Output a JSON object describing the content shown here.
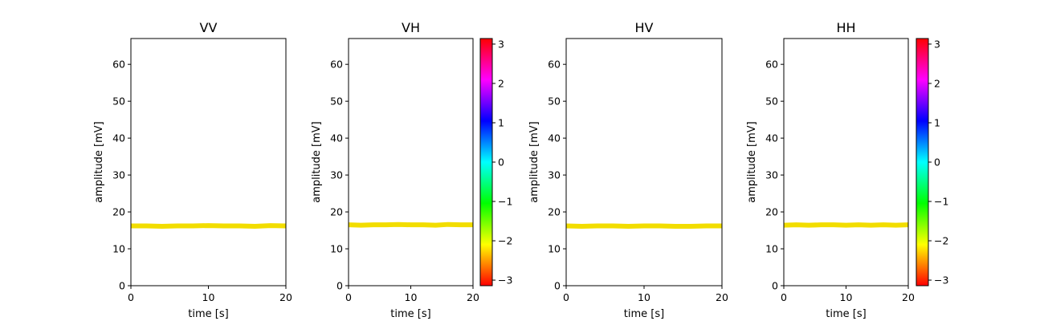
{
  "chart_data": [
    {
      "type": "line",
      "title": "VV",
      "xlabel": "time [s]",
      "ylabel": "amplitude [mV]",
      "xlim": [
        0,
        20
      ],
      "ylim": [
        0,
        67
      ],
      "xticks": [
        "0",
        "10",
        "20"
      ],
      "yticks": [
        "0",
        "10",
        "20",
        "30",
        "40",
        "50",
        "60"
      ],
      "series": [
        {
          "x": [
            0,
            2,
            4,
            6,
            8,
            10,
            12,
            14,
            16,
            18,
            20
          ],
          "y": [
            16.2,
            16.2,
            16.1,
            16.2,
            16.2,
            16.3,
            16.2,
            16.2,
            16.1,
            16.3,
            16.2
          ],
          "color": "#f2dd00"
        }
      ],
      "colorbar": null
    },
    {
      "type": "line",
      "title": "VH",
      "xlabel": "time [s]",
      "ylabel": "amplitude [mV]",
      "xlim": [
        0,
        20
      ],
      "ylim": [
        0,
        67
      ],
      "xticks": [
        "0",
        "10",
        "20"
      ],
      "yticks": [
        "0",
        "10",
        "20",
        "30",
        "40",
        "50",
        "60"
      ],
      "series": [
        {
          "x": [
            0,
            2,
            4,
            6,
            8,
            10,
            12,
            14,
            16,
            18,
            20
          ],
          "y": [
            16.5,
            16.4,
            16.5,
            16.5,
            16.6,
            16.5,
            16.5,
            16.4,
            16.6,
            16.5,
            16.5
          ],
          "color": "#f2dd00"
        }
      ],
      "colorbar": {
        "min": -3.14159,
        "max": 3.14159,
        "ticks": [
          "3",
          "2",
          "1",
          "0",
          "−1",
          "−2",
          "−3"
        ],
        "tick_values": [
          3,
          2,
          1,
          0,
          -1,
          -2,
          -3
        ]
      }
    },
    {
      "type": "line",
      "title": "HV",
      "xlabel": "time [s]",
      "ylabel": "amplitude [mV]",
      "xlim": [
        0,
        20
      ],
      "ylim": [
        0,
        67
      ],
      "xticks": [
        "0",
        "10",
        "20"
      ],
      "yticks": [
        "0",
        "10",
        "20",
        "30",
        "40",
        "50",
        "60"
      ],
      "series": [
        {
          "x": [
            0,
            2,
            4,
            6,
            8,
            10,
            12,
            14,
            16,
            18,
            20
          ],
          "y": [
            16.2,
            16.1,
            16.2,
            16.2,
            16.1,
            16.2,
            16.2,
            16.1,
            16.1,
            16.2,
            16.2
          ],
          "color": "#f2dd00"
        }
      ],
      "colorbar": null
    },
    {
      "type": "line",
      "title": "HH",
      "xlabel": "time [s]",
      "ylabel": "amplitude [mV]",
      "xlim": [
        0,
        20
      ],
      "ylim": [
        0,
        67
      ],
      "xticks": [
        "0",
        "10",
        "20"
      ],
      "yticks": [
        "0",
        "10",
        "20",
        "30",
        "40",
        "50",
        "60"
      ],
      "series": [
        {
          "x": [
            0,
            2,
            4,
            6,
            8,
            10,
            12,
            14,
            16,
            18,
            20
          ],
          "y": [
            16.4,
            16.5,
            16.4,
            16.5,
            16.5,
            16.4,
            16.5,
            16.4,
            16.5,
            16.4,
            16.5
          ],
          "color": "#f2dd00"
        }
      ],
      "colorbar": {
        "min": -3.14159,
        "max": 3.14159,
        "ticks": [
          "3",
          "2",
          "1",
          "0",
          "−1",
          "−2",
          "−3"
        ],
        "tick_values": [
          3,
          2,
          1,
          0,
          -1,
          -2,
          -3
        ]
      }
    }
  ]
}
